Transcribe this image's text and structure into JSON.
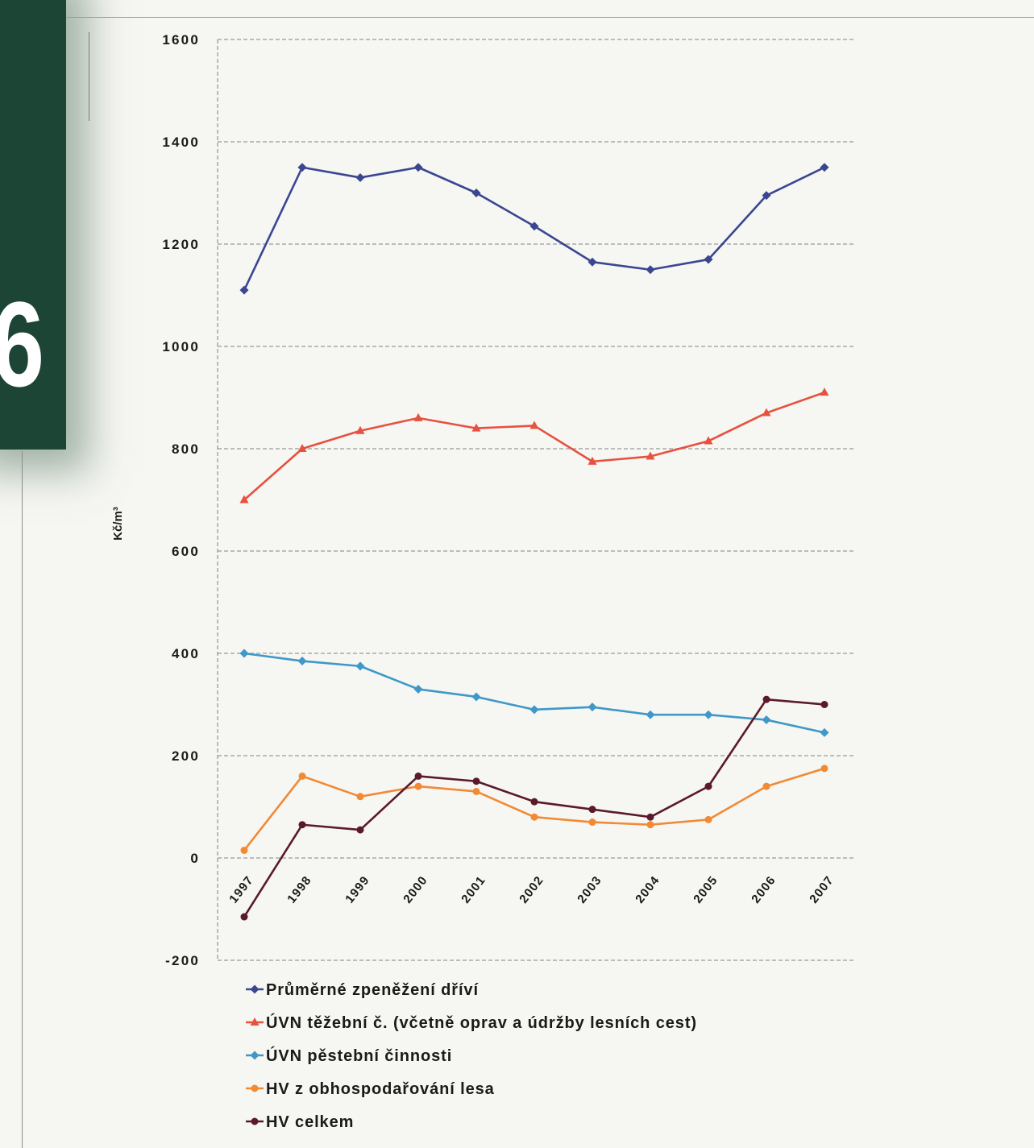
{
  "section_tab": {
    "number": "6",
    "color": "#1d4536"
  },
  "chart_data": {
    "type": "line",
    "categories": [
      "1997",
      "1998",
      "1999",
      "2000",
      "2001",
      "2002",
      "2003",
      "2004",
      "2005",
      "2006",
      "2007"
    ],
    "ylabel": "Kč/m³",
    "ylim": [
      -200,
      1600
    ],
    "yticks": [
      -200,
      0,
      200,
      400,
      600,
      800,
      1000,
      1200,
      1400,
      1600
    ],
    "grid": "horizontal dashed",
    "legend": "bottom-left",
    "series": [
      {
        "name": "Průměrné zpeněžení dříví",
        "color": "#3b4690",
        "marker": "diamond",
        "values": [
          1110,
          1350,
          1330,
          1350,
          1300,
          1235,
          1165,
          1150,
          1170,
          1295,
          1350
        ]
      },
      {
        "name": "ÚVN těžební č. (včetně oprav a údržby lesních cest)",
        "color": "#e8503f",
        "marker": "triangle",
        "values": [
          700,
          800,
          835,
          860,
          840,
          845,
          775,
          785,
          815,
          870,
          910
        ]
      },
      {
        "name": "ÚVN pěstební činnosti",
        "color": "#3f98c8",
        "marker": "diamond",
        "values": [
          400,
          385,
          375,
          330,
          315,
          290,
          295,
          280,
          280,
          270,
          245
        ]
      },
      {
        "name": "HV z obhospodařování lesa",
        "color": "#f28a34",
        "marker": "circle",
        "values": [
          15,
          160,
          120,
          140,
          130,
          80,
          70,
          65,
          75,
          140,
          175
        ]
      },
      {
        "name": "HV celkem",
        "color": "#5b1a2b",
        "marker": "circle",
        "values": [
          -115,
          65,
          55,
          160,
          150,
          110,
          95,
          80,
          140,
          310,
          300
        ]
      }
    ]
  }
}
